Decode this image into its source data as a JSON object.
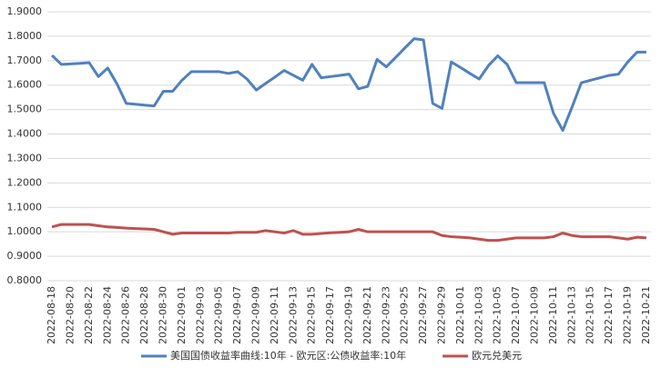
{
  "chart_data": {
    "type": "line",
    "categories": [
      "2022-08-18",
      null,
      "2022-08-20",
      null,
      "2022-08-22",
      null,
      "2022-08-24",
      null,
      "2022-08-26",
      null,
      "2022-08-28",
      null,
      "2022-08-30",
      null,
      "2022-09-01",
      null,
      "2022-09-03",
      null,
      "2022-09-05",
      null,
      "2022-09-07",
      null,
      "2022-09-09",
      null,
      "2022-09-11",
      null,
      "2022-09-13",
      null,
      "2022-09-15",
      null,
      "2022-09-17",
      null,
      "2022-09-19",
      null,
      "2022-09-21",
      null,
      "2022-09-23",
      null,
      "2022-09-25",
      null,
      "2022-09-27",
      null,
      "2022-09-29",
      null,
      "2022-10-01",
      null,
      "2022-10-03",
      null,
      "2022-10-05",
      null,
      "2022-10-07",
      null,
      "2022-10-09",
      null,
      "2022-10-11",
      null,
      "2022-10-13",
      null,
      "2022-10-15",
      null,
      "2022-10-17",
      null,
      "2022-10-19",
      null,
      "2022-10-21"
    ],
    "series": [
      {
        "name": "美国国债收益率曲线:10年 - 欧元区:公债收益率:10年",
        "color": "#4f81bd",
        "values": [
          1.722,
          1.685,
          1.687,
          1.689,
          1.692,
          1.635,
          1.67,
          1.605,
          1.525,
          1.522,
          1.518,
          1.515,
          1.575,
          1.575,
          1.62,
          1.655,
          1.655,
          1.655,
          1.655,
          1.648,
          1.655,
          1.625,
          1.58,
          1.607,
          1.633,
          1.66,
          1.64,
          1.62,
          1.685,
          1.63,
          1.635,
          1.64,
          1.645,
          1.585,
          1.595,
          1.705,
          1.675,
          1.713,
          1.752,
          1.79,
          1.785,
          1.525,
          1.505,
          1.695,
          1.672,
          1.648,
          1.625,
          1.68,
          1.72,
          1.685,
          1.61,
          1.61,
          1.61,
          1.61,
          1.485,
          1.415,
          1.51,
          1.61,
          1.62,
          1.63,
          1.64,
          1.645,
          1.695,
          1.735,
          1.735
        ]
      },
      {
        "name": "欧元兑美元",
        "color": "#c0504d",
        "values": [
          1.02,
          1.03,
          1.03,
          1.03,
          1.03,
          1.025,
          1.02,
          1.018,
          1.015,
          1.013,
          1.012,
          1.01,
          1.0,
          0.99,
          0.995,
          0.995,
          0.995,
          0.995,
          0.995,
          0.995,
          0.998,
          0.998,
          0.998,
          1.005,
          1.0,
          0.995,
          1.005,
          0.99,
          0.99,
          0.993,
          0.996,
          0.998,
          1.0,
          1.01,
          1.0,
          1.0,
          1.0,
          1.0,
          1.0,
          1.0,
          1.0,
          1.0,
          0.985,
          0.98,
          0.978,
          0.975,
          0.97,
          0.965,
          0.965,
          0.97,
          0.975,
          0.975,
          0.975,
          0.975,
          0.98,
          0.995,
          0.985,
          0.98,
          0.98,
          0.98,
          0.98,
          0.975,
          0.97,
          0.978,
          0.975
        ]
      }
    ],
    "ylim": [
      0.8,
      1.9
    ],
    "yticks": [
      {
        "value": 0.8,
        "label": "0.8000"
      },
      {
        "value": 0.9,
        "label": "0.9000"
      },
      {
        "value": 1.0,
        "label": "1.0000"
      },
      {
        "value": 1.1,
        "label": "1.1000"
      },
      {
        "value": 1.2,
        "label": "1.2000"
      },
      {
        "value": 1.3,
        "label": "1.3000"
      },
      {
        "value": 1.4,
        "label": "1.4000"
      },
      {
        "value": 1.5,
        "label": "1.5000"
      },
      {
        "value": 1.6,
        "label": "1.6000"
      },
      {
        "value": 1.7,
        "label": "1.7000"
      },
      {
        "value": 1.8,
        "label": "1.8000"
      },
      {
        "value": 1.9,
        "label": "1.9000"
      }
    ],
    "grid": true
  }
}
